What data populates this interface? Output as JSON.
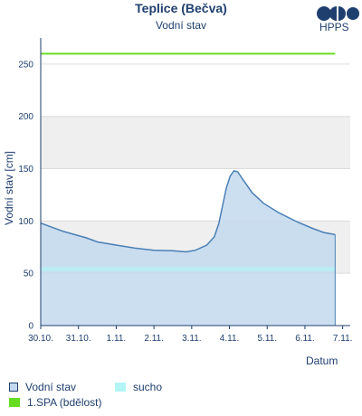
{
  "header": {
    "title": "Teplice (Bečva)",
    "subtitle": "Vodní stav",
    "logo_text": "HPPS"
  },
  "colors": {
    "navy": "#1f3f6e",
    "line": "#4a7fb5",
    "fill": "#c3d9ef",
    "spa": "#66dd22",
    "sucho": "#b3f5f5",
    "band": "#efefef"
  },
  "chart_data": {
    "type": "area",
    "title": "Teplice (Bečva)",
    "subtitle": "Vodní stav",
    "xlabel": "Datum",
    "ylabel": "Vodní stav [cm]",
    "ylim": [
      0,
      275
    ],
    "yticks": [
      0,
      50,
      100,
      150,
      200,
      250
    ],
    "xticks": [
      "30.10.",
      "31.10.",
      "1.11.",
      "2.11.",
      "3.11.",
      "4.11.",
      "5.11.",
      "6.11.",
      "7.11."
    ],
    "xlim": [
      0,
      8.2
    ],
    "grid": "horizontal bands",
    "legend_placement": "bottom-left",
    "series": [
      {
        "name": "Vodní stav",
        "points": [
          [
            0,
            98
          ],
          [
            0.3,
            94
          ],
          [
            0.6,
            90
          ],
          [
            0.9,
            87
          ],
          [
            1.2,
            84
          ],
          [
            1.5,
            80
          ],
          [
            2.0,
            77
          ],
          [
            2.5,
            74
          ],
          [
            3.0,
            72
          ],
          [
            3.5,
            71.5
          ],
          [
            3.85,
            70.5
          ],
          [
            4.1,
            72
          ],
          [
            4.4,
            77
          ],
          [
            4.6,
            85
          ],
          [
            4.72,
            98
          ],
          [
            4.82,
            115
          ],
          [
            4.92,
            132
          ],
          [
            5.02,
            143
          ],
          [
            5.12,
            148
          ],
          [
            5.22,
            147
          ],
          [
            5.35,
            140
          ],
          [
            5.6,
            127
          ],
          [
            5.9,
            117
          ],
          [
            6.3,
            108
          ],
          [
            6.8,
            99
          ],
          [
            7.2,
            93
          ],
          [
            7.5,
            89
          ],
          [
            7.8,
            87
          ]
        ]
      },
      {
        "name": "1.SPA (bdělost)",
        "value": 260
      },
      {
        "name": "sucho",
        "value": 54
      }
    ],
    "legend": [
      "Vodní stav",
      "sucho",
      "1.SPA (bdělost)"
    ]
  }
}
